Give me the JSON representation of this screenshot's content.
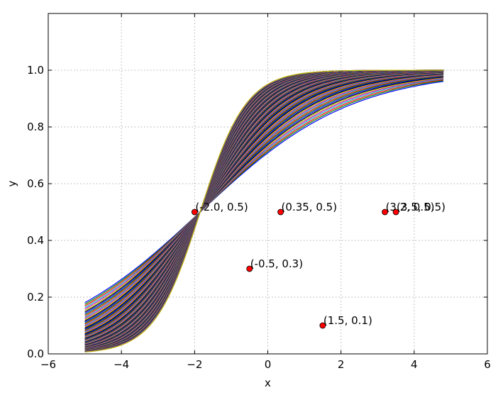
{
  "chart_data": {
    "type": "line",
    "title": "",
    "xlabel": "x",
    "ylabel": "y",
    "xlim": [
      -6,
      6
    ],
    "ylim": [
      0,
      1.2
    ],
    "grid": true,
    "x_ticks": [
      -6,
      -4,
      -2,
      0,
      2,
      4,
      6
    ],
    "x_tick_labels": [
      "−6",
      "−4",
      "−2",
      "0",
      "2",
      "4",
      "6"
    ],
    "y_ticks": [
      0.0,
      0.2,
      0.4,
      0.6,
      0.8,
      1.0
    ],
    "y_tick_labels": [
      "0.0",
      "0.2",
      "0.4",
      "0.6",
      "0.8",
      "1.0"
    ],
    "series": {
      "function": "sigmoid",
      "x_range": [
        -5,
        4.8
      ],
      "center": -1.85,
      "slope_min": 0.48,
      "slope_max": 1.6,
      "count": 90,
      "colors": [
        "#0000ff",
        "#008000",
        "#ff0000",
        "#00bfbf",
        "#bf00bf",
        "#bfbf00",
        "#000000"
      ]
    },
    "points": [
      {
        "x": -2.0,
        "y": 0.5,
        "label": "(-2.0, 0.5)"
      },
      {
        "x": 0.35,
        "y": 0.5,
        "label": "(0.35, 0.5)"
      },
      {
        "x": -0.5,
        "y": 0.3,
        "label": "(-0.5, 0.3)"
      },
      {
        "x": 3.2,
        "y": 0.5,
        "label": "(3.2, 0.5)"
      },
      {
        "x": 3.5,
        "y": 0.5,
        "label": "(3.5, 0.5)"
      },
      {
        "x": 1.5,
        "y": 0.1,
        "label": "(1.5, 0.1)"
      }
    ],
    "point_color": "#ff0000"
  }
}
